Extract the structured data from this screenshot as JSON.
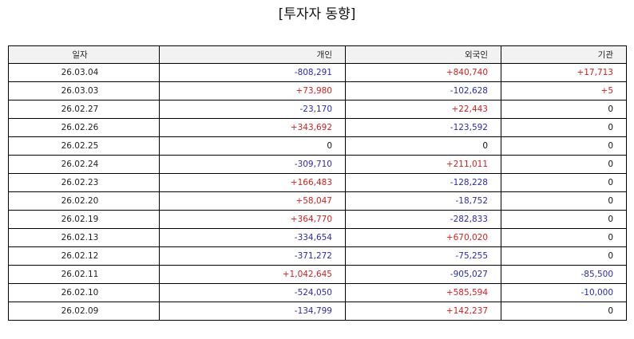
{
  "title": "[투자자 동향]",
  "colors": {
    "positive": "#d42020",
    "negative": "#2a2ab4",
    "zero": "#111111",
    "header_bg": "#f2f2f2"
  },
  "table": {
    "headers": {
      "date": "일자",
      "individual": "개인",
      "foreign": "외국인",
      "institution": "기관"
    },
    "rows": [
      {
        "date": "26.03.04",
        "individual": "-808,291",
        "foreign": "+840,740",
        "institution": "+17,713"
      },
      {
        "date": "26.03.03",
        "individual": "+73,980",
        "foreign": "-102,628",
        "institution": "+5"
      },
      {
        "date": "26.02.27",
        "individual": "-23,170",
        "foreign": "+22,443",
        "institution": "0"
      },
      {
        "date": "26.02.26",
        "individual": "+343,692",
        "foreign": "-123,592",
        "institution": "0"
      },
      {
        "date": "26.02.25",
        "individual": "0",
        "foreign": "0",
        "institution": "0"
      },
      {
        "date": "26.02.24",
        "individual": "-309,710",
        "foreign": "+211,011",
        "institution": "0"
      },
      {
        "date": "26.02.23",
        "individual": "+166,483",
        "foreign": "-128,228",
        "institution": "0"
      },
      {
        "date": "26.02.20",
        "individual": "+58,047",
        "foreign": "-18,752",
        "institution": "0"
      },
      {
        "date": "26.02.19",
        "individual": "+364,770",
        "foreign": "-282,833",
        "institution": "0"
      },
      {
        "date": "26.02.13",
        "individual": "-334,654",
        "foreign": "+670,020",
        "institution": "0"
      },
      {
        "date": "26.02.12",
        "individual": "-371,272",
        "foreign": "-75,255",
        "institution": "0"
      },
      {
        "date": "26.02.11",
        "individual": "+1,042,645",
        "foreign": "-905,027",
        "institution": "-85,500"
      },
      {
        "date": "26.02.10",
        "individual": "-524,050",
        "foreign": "+585,594",
        "institution": "-10,000"
      },
      {
        "date": "26.02.09",
        "individual": "-134,799",
        "foreign": "+142,237",
        "institution": "0"
      }
    ]
  }
}
